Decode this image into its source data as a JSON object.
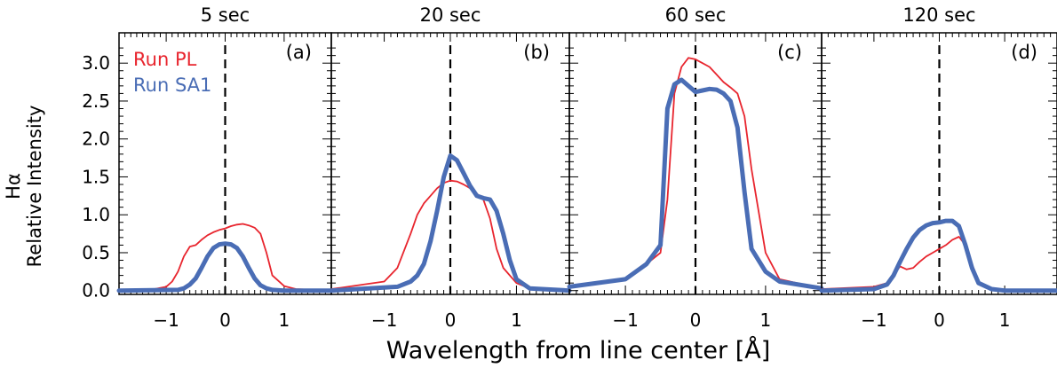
{
  "colors": {
    "run_pl": "#e8252e",
    "run_sa1": "#4a6db5",
    "axis": "#000000"
  },
  "chart_data": [
    {
      "type": "line",
      "title": "5 sec",
      "panel_label": "(a)",
      "xlim": [
        -1.8,
        1.8
      ],
      "ylim": [
        -0.05,
        3.4
      ],
      "legend": [
        "Run PL",
        "Run SA1"
      ],
      "series": [
        {
          "name": "Run PL",
          "x": [
            -1.8,
            -1.2,
            -1.0,
            -0.9,
            -0.8,
            -0.7,
            -0.6,
            -0.5,
            -0.4,
            -0.3,
            -0.2,
            -0.1,
            0.0,
            0.1,
            0.2,
            0.3,
            0.4,
            0.5,
            0.6,
            0.7,
            0.8,
            1.0,
            1.2,
            1.8
          ],
          "y": [
            0.0,
            0.02,
            0.05,
            0.12,
            0.25,
            0.45,
            0.58,
            0.6,
            0.67,
            0.73,
            0.77,
            0.8,
            0.82,
            0.85,
            0.87,
            0.88,
            0.86,
            0.83,
            0.75,
            0.5,
            0.2,
            0.06,
            0.02,
            0.0
          ]
        },
        {
          "name": "Run SA1",
          "x": [
            -1.8,
            -0.8,
            -0.7,
            -0.6,
            -0.5,
            -0.4,
            -0.3,
            -0.2,
            -0.1,
            0.0,
            0.1,
            0.2,
            0.3,
            0.4,
            0.5,
            0.6,
            0.7,
            0.8,
            1.0,
            1.8
          ],
          "y": [
            0.0,
            0.01,
            0.03,
            0.08,
            0.16,
            0.3,
            0.45,
            0.56,
            0.61,
            0.62,
            0.61,
            0.56,
            0.45,
            0.3,
            0.16,
            0.07,
            0.03,
            0.01,
            0.0,
            0.0
          ]
        }
      ]
    },
    {
      "type": "line",
      "title": "20 sec",
      "panel_label": "(b)",
      "xlim": [
        -1.8,
        1.8
      ],
      "ylim": [
        -0.05,
        3.4
      ],
      "series": [
        {
          "name": "Run PL",
          "x": [
            -1.8,
            -1.0,
            -0.8,
            -0.6,
            -0.5,
            -0.4,
            -0.3,
            -0.2,
            -0.1,
            0.0,
            0.1,
            0.2,
            0.3,
            0.4,
            0.5,
            0.6,
            0.7,
            0.8,
            1.0,
            1.2,
            1.8
          ],
          "y": [
            0.02,
            0.12,
            0.3,
            0.75,
            1.0,
            1.15,
            1.25,
            1.35,
            1.42,
            1.45,
            1.44,
            1.4,
            1.35,
            1.28,
            1.2,
            0.95,
            0.55,
            0.3,
            0.1,
            0.03,
            0.0
          ]
        },
        {
          "name": "Run SA1",
          "x": [
            -1.8,
            -0.8,
            -0.6,
            -0.5,
            -0.4,
            -0.3,
            -0.2,
            -0.1,
            0.0,
            0.1,
            0.2,
            0.3,
            0.4,
            0.5,
            0.6,
            0.7,
            0.8,
            0.9,
            1.0,
            1.2,
            1.8
          ],
          "y": [
            0.0,
            0.05,
            0.12,
            0.2,
            0.35,
            0.65,
            1.05,
            1.5,
            1.78,
            1.72,
            1.55,
            1.38,
            1.25,
            1.22,
            1.2,
            1.05,
            0.75,
            0.4,
            0.15,
            0.03,
            0.0
          ]
        }
      ]
    },
    {
      "type": "line",
      "title": "60 sec",
      "panel_label": "(c)",
      "xlim": [
        -1.8,
        1.8
      ],
      "ylim": [
        -0.05,
        3.4
      ],
      "series": [
        {
          "name": "Run PL",
          "x": [
            -1.8,
            -1.0,
            -0.7,
            -0.5,
            -0.4,
            -0.3,
            -0.2,
            -0.1,
            0.0,
            0.1,
            0.2,
            0.3,
            0.4,
            0.5,
            0.6,
            0.7,
            0.8,
            1.0,
            1.2,
            1.8
          ],
          "y": [
            0.05,
            0.15,
            0.35,
            0.5,
            1.2,
            2.6,
            2.95,
            3.07,
            3.05,
            3.0,
            2.95,
            2.85,
            2.75,
            2.68,
            2.6,
            2.3,
            1.6,
            0.5,
            0.15,
            0.03
          ]
        },
        {
          "name": "Run SA1",
          "x": [
            -1.8,
            -1.0,
            -0.7,
            -0.5,
            -0.4,
            -0.3,
            -0.2,
            -0.1,
            0.0,
            0.1,
            0.2,
            0.3,
            0.4,
            0.5,
            0.6,
            0.7,
            0.8,
            1.0,
            1.2,
            1.8
          ],
          "y": [
            0.05,
            0.15,
            0.35,
            0.6,
            2.4,
            2.72,
            2.78,
            2.7,
            2.62,
            2.64,
            2.66,
            2.65,
            2.6,
            2.5,
            2.15,
            1.3,
            0.55,
            0.25,
            0.12,
            0.03
          ]
        }
      ]
    },
    {
      "type": "line",
      "title": "120 sec",
      "panel_label": "(d)",
      "xlim": [
        -1.8,
        1.8
      ],
      "ylim": [
        -0.05,
        3.4
      ],
      "series": [
        {
          "name": "Run PL",
          "x": [
            -1.8,
            -1.0,
            -0.8,
            -0.7,
            -0.6,
            -0.5,
            -0.4,
            -0.3,
            -0.2,
            -0.1,
            0.0,
            0.1,
            0.2,
            0.3,
            0.4,
            0.5,
            0.6,
            0.8,
            1.0,
            1.8
          ],
          "y": [
            0.02,
            0.05,
            0.1,
            0.2,
            0.32,
            0.28,
            0.3,
            0.38,
            0.45,
            0.5,
            0.55,
            0.6,
            0.67,
            0.71,
            0.6,
            0.35,
            0.12,
            0.03,
            0.01,
            0.0
          ]
        },
        {
          "name": "Run SA1",
          "x": [
            -1.8,
            -1.0,
            -0.8,
            -0.7,
            -0.6,
            -0.5,
            -0.4,
            -0.3,
            -0.2,
            -0.1,
            0.0,
            0.1,
            0.2,
            0.3,
            0.4,
            0.5,
            0.6,
            0.8,
            1.0,
            1.8
          ],
          "y": [
            0.0,
            0.02,
            0.08,
            0.2,
            0.38,
            0.55,
            0.7,
            0.8,
            0.86,
            0.89,
            0.9,
            0.92,
            0.92,
            0.85,
            0.6,
            0.3,
            0.1,
            0.02,
            0.0,
            0.0
          ]
        }
      ]
    }
  ],
  "axes": {
    "xlabel": "Wavelength from line center [Å]",
    "ylabel_line1": "Hα",
    "ylabel_line2": "Relative Intensity",
    "xticks": [
      -1,
      0,
      1
    ],
    "xtick_labels": [
      "−1",
      "0",
      "1"
    ],
    "yticks": [
      0.0,
      0.5,
      1.0,
      1.5,
      2.0,
      2.5,
      3.0
    ],
    "ytick_labels": [
      "0.0",
      "0.5",
      "1.0",
      "1.5",
      "2.0",
      "2.5",
      "3.0"
    ]
  }
}
